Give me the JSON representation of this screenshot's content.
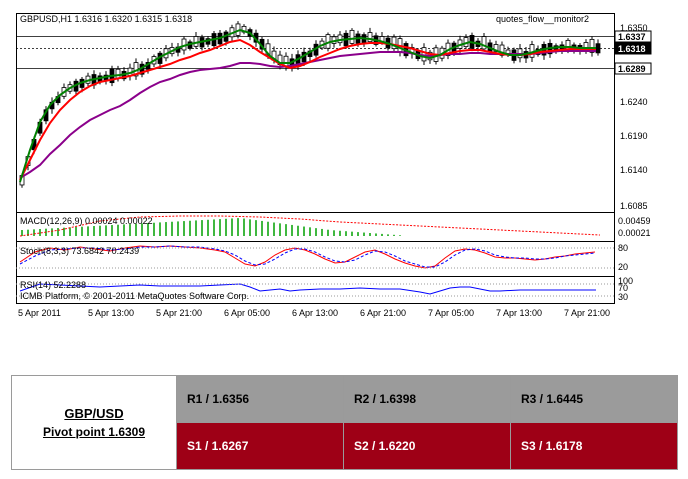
{
  "chart": {
    "header": "GBPUSD,H1  1.6316 1.6320 1.6315 1.6318",
    "indicator_name": "quotes_flow__monitor2",
    "price_axis": [
      "1.6350",
      "1.6240",
      "1.6190",
      "1.6140",
      "1.6085"
    ],
    "price_boxes": [
      {
        "label": "1.6337",
        "style": "light"
      },
      {
        "label": "1.6318",
        "style": "dark"
      },
      {
        "label": "1.6289",
        "style": "light"
      }
    ],
    "macd": {
      "label": "MACD(12,26,9) 0.00024 0.00022",
      "axis": [
        "0.00459",
        "0.00021"
      ]
    },
    "stoch": {
      "label": "Stoch(8,3,3) 73.6842 70.2439",
      "axis": [
        "80",
        "20"
      ]
    },
    "rsi": {
      "label": "RSI(14) 52.2288",
      "axis": [
        "100",
        "70",
        "30"
      ]
    },
    "copyright": "ICMB Platform, © 2001-2011 MetaQuotes Software Corp.",
    "time_axis": [
      "5 Apr 2011",
      "5 Apr 13:00",
      "5 Apr 21:00",
      "6 Apr 05:00",
      "6 Apr 13:00",
      "6 Apr 21:00",
      "7 Apr 05:00",
      "7 Apr 13:00",
      "7 Apr 21:00"
    ],
    "colors": {
      "ma_fast": "#008000",
      "ma_mid": "#ff0000",
      "ma_slow": "#8b008b",
      "macd_hist": "#00a000",
      "signal": "#ff0000",
      "stoch_main": "#ff0000",
      "stoch_signal": "#0000ff",
      "rsi": "#0000ff"
    }
  },
  "pivot": {
    "pair": "GBP/USD",
    "pivot_point": "Pivot point 1.6309",
    "resistance": [
      "R1 / 1.6356",
      "R2 / 1.6398",
      "R3 / 1.6445"
    ],
    "support": [
      "S1 / 1.6267",
      "S2 / 1.6220",
      "S3 / 1.6178"
    ],
    "colors": {
      "resistance_bg": "#9b9b9b",
      "support_bg": "#9e0016"
    }
  }
}
